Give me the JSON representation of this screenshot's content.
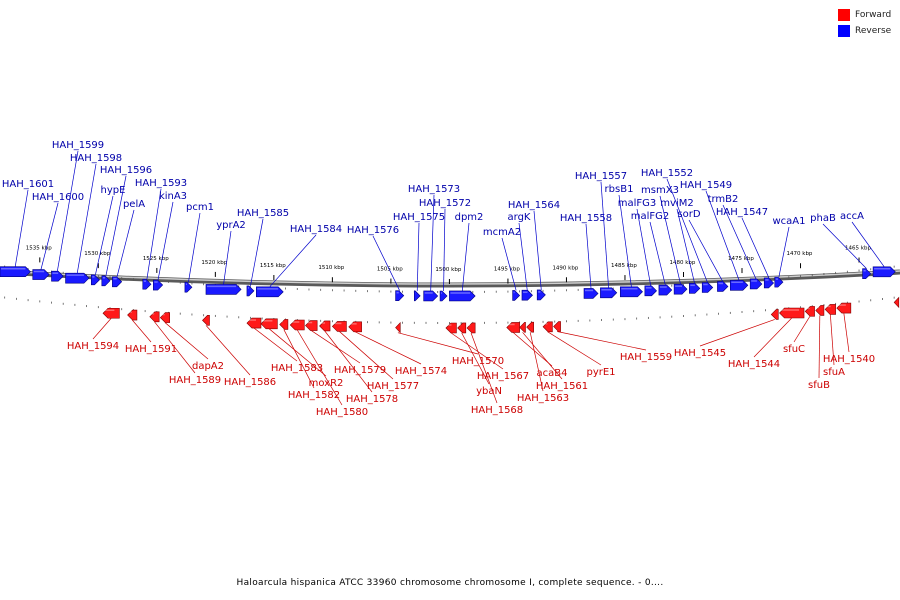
{
  "legend": {
    "forward": {
      "label": "Forward",
      "color": "#ff0000"
    },
    "reverse": {
      "label": "Reverse",
      "color": "#0000ff"
    }
  },
  "colors": {
    "forward_label": "#cc0000",
    "reverse_label": "#0000aa",
    "backbone": "#888888"
  },
  "caption": "Haloarcula hispanica ATCC 33960 chromosome chromosome I, complete sequence. - 0....",
  "axis": {
    "start_kbp": 1538.4,
    "end_kbp": 1461.5,
    "ticks": [
      {
        "kbp": 1535,
        "label": "1535 kbp"
      },
      {
        "kbp": 1530,
        "label": "1530 kbp"
      },
      {
        "kbp": 1525,
        "label": "1525 kbp"
      },
      {
        "kbp": 1520,
        "label": "1520 kbp"
      },
      {
        "kbp": 1515,
        "label": "1515 kbp"
      },
      {
        "kbp": 1510,
        "label": "1510 kbp"
      },
      {
        "kbp": 1505,
        "label": "1505 kbp"
      },
      {
        "kbp": 1500,
        "label": "1500 kbp"
      },
      {
        "kbp": 1495,
        "label": "1495 kbp"
      },
      {
        "kbp": 1490,
        "label": "1490 kbp"
      },
      {
        "kbp": 1485,
        "label": "1485 kbp"
      },
      {
        "kbp": 1480,
        "label": "1480 kbp"
      },
      {
        "kbp": 1475,
        "label": "1475 kbp"
      },
      {
        "kbp": 1470,
        "label": "1470 kbp"
      },
      {
        "kbp": 1465,
        "label": "1465 kbp"
      }
    ]
  },
  "reverse_genes": [
    {
      "name": "HAH_1601",
      "start": 1538.4,
      "end": 1535.8
    },
    {
      "name": "HAH_1600",
      "start": 1535.6,
      "end": 1534.2
    },
    {
      "name": "HAH_1599",
      "start": 1534.0,
      "end": 1533.0
    },
    {
      "name": "HAH_1598",
      "start": 1532.8,
      "end": 1530.8
    },
    {
      "name": "hypE",
      "start": 1530.6,
      "end": 1529.9
    },
    {
      "name": "HAH_1596",
      "start": 1529.7,
      "end": 1529.0
    },
    {
      "name": "pelA",
      "start": 1528.8,
      "end": 1528.0
    },
    {
      "name": "HAH_1593",
      "start": 1526.2,
      "end": 1525.5
    },
    {
      "name": "kinA3",
      "start": 1525.3,
      "end": 1524.5
    },
    {
      "name": "pcm1",
      "start": 1522.6,
      "end": 1522.0
    },
    {
      "name": "yprA2",
      "start": 1520.8,
      "end": 1517.8
    },
    {
      "name": "HAH_1585",
      "start": 1517.3,
      "end": 1516.7
    },
    {
      "name": "HAH_1584",
      "start": 1516.5,
      "end": 1514.2
    },
    {
      "name": "HAH_1576",
      "start": 1504.6,
      "end": 1503.9
    },
    {
      "name": "HAH_1575",
      "start": 1503.0,
      "end": 1502.5
    },
    {
      "name": "HAH_1573",
      "start": 1502.2,
      "end": 1501.0
    },
    {
      "name": "HAH_1572",
      "start": 1500.8,
      "end": 1500.2
    },
    {
      "name": "dpm2",
      "start": 1500.0,
      "end": 1497.8
    },
    {
      "name": "mcmA2",
      "start": 1494.6,
      "end": 1494.0
    },
    {
      "name": "argK",
      "start": 1493.8,
      "end": 1492.9
    },
    {
      "name": "HAH_1564",
      "start": 1492.5,
      "end": 1491.8
    },
    {
      "name": "HAH_1558",
      "start": 1488.5,
      "end": 1487.3
    },
    {
      "name": "HAH_1557",
      "start": 1487.1,
      "end": 1485.7
    },
    {
      "name": "rbsB1",
      "start": 1485.4,
      "end": 1483.5
    },
    {
      "name": "malFG3",
      "start": 1483.3,
      "end": 1482.3
    },
    {
      "name": "malFG2",
      "start": 1482.1,
      "end": 1481.0
    },
    {
      "name": "msmX3",
      "start": 1480.8,
      "end": 1479.7
    },
    {
      "name": "mviM2",
      "start": 1479.5,
      "end": 1478.6
    },
    {
      "name": "HAH_1552",
      "start": 1478.4,
      "end": 1477.5
    },
    {
      "name": "sorD",
      "start": 1477.1,
      "end": 1476.2
    },
    {
      "name": "HAH_1549",
      "start": 1476.0,
      "end": 1474.5
    },
    {
      "name": "trmB2",
      "start": 1474.3,
      "end": 1473.3
    },
    {
      "name": "HAH_1547",
      "start": 1473.1,
      "end": 1472.3
    },
    {
      "name": "wcaA1",
      "start": 1472.2,
      "end": 1471.5
    },
    {
      "name": "phaB",
      "start": 1464.7,
      "end": 1464.0
    },
    {
      "name": "accA",
      "start": 1463.8,
      "end": 1461.9
    }
  ],
  "forward_genes": [
    {
      "name": "HAH_1594",
      "start": 1528.2,
      "end": 1529.6
    },
    {
      "name": "HAH_1591",
      "start": 1526.7,
      "end": 1527.5
    },
    {
      "name": "HAH_1589",
      "start": 1524.8,
      "end": 1525.6
    },
    {
      "name": "dapA2",
      "start": 1523.9,
      "end": 1524.7
    },
    {
      "name": "HAH_1586",
      "start": 1520.5,
      "end": 1521.1
    },
    {
      "name": "HAH_1583",
      "start": 1516.1,
      "end": 1517.3
    },
    {
      "name": "moxR2",
      "start": 1514.7,
      "end": 1516.1
    },
    {
      "name": "HAH_1582",
      "start": 1513.8,
      "end": 1514.5
    },
    {
      "name": "HAH_1580",
      "start": 1512.4,
      "end": 1513.6
    },
    {
      "name": "HAH_1579",
      "start": 1511.3,
      "end": 1512.3
    },
    {
      "name": "HAH_1578",
      "start": 1510.2,
      "end": 1511.1
    },
    {
      "name": "HAH_1577",
      "start": 1508.8,
      "end": 1510.0
    },
    {
      "name": "HAH_1574",
      "start": 1507.5,
      "end": 1508.6
    },
    {
      "name": "HAH_1570",
      "start": 1504.2,
      "end": 1504.6
    },
    {
      "name": "HAH_1567",
      "start": 1499.4,
      "end": 1500.3
    },
    {
      "name": "ybaN",
      "start": 1498.6,
      "end": 1499.3
    },
    {
      "name": "HAH_1568",
      "start": 1497.8,
      "end": 1498.5
    },
    {
      "name": "acaB4",
      "start": 1494.0,
      "end": 1495.1
    },
    {
      "name": "HAH_1561",
      "start": 1493.5,
      "end": 1494.0
    },
    {
      "name": "HAH_1563",
      "start": 1492.8,
      "end": 1493.4
    },
    {
      "name": "pyrE1",
      "start": 1491.2,
      "end": 1492.0
    },
    {
      "name": "HAH_1559",
      "start": 1490.5,
      "end": 1491.1
    },
    {
      "name": "HAH_1545",
      "start": 1471.9,
      "end": 1472.5
    },
    {
      "name": "HAH_1544",
      "start": 1469.7,
      "end": 1471.8
    },
    {
      "name": "sfuC",
      "start": 1468.8,
      "end": 1469.6
    },
    {
      "name": "sfuB",
      "start": 1468.0,
      "end": 1468.7
    },
    {
      "name": "sfuA",
      "start": 1467.0,
      "end": 1467.9
    },
    {
      "name": "HAH_1540",
      "start": 1465.7,
      "end": 1466.9
    },
    {
      "name": "",
      "start": 1461.6,
      "end": 1462.0
    }
  ]
}
